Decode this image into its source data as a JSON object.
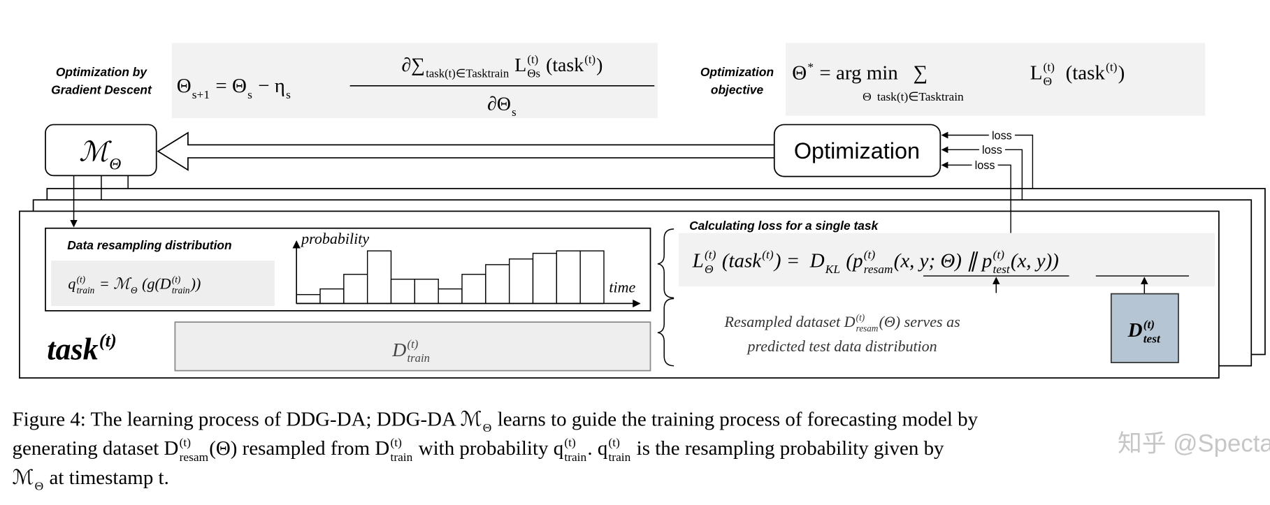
{
  "top": {
    "gd_label": [
      "Optimization by",
      "Gradient Descent"
    ],
    "gd_formula": {
      "lhs": [
        {
          "base": "Θ",
          "sub": "s+1"
        },
        " = ",
        {
          "base": "Θ",
          "sub": "s"
        },
        " − ",
        {
          "base": "η",
          "sub": "s"
        }
      ],
      "numerator": [
        "∂",
        {
          "base": "∑",
          "sub": "task(t)∈Tasktrain"
        },
        " ",
        {
          "base": "L",
          "sup": "(t)",
          "sub": "Θs"
        },
        " ",
        {
          "base": "(task",
          "sup": "(t)"
        },
        ")"
      ],
      "denominator": [
        "∂",
        {
          "base": "Θ",
          "sub": "s"
        }
      ]
    },
    "objective_label": [
      "Optimization",
      "objective"
    ],
    "objective_formula": [
      {
        "base": "Θ",
        "sup": "*"
      },
      " = ",
      {
        "base": "arg min",
        "under": "Θ"
      },
      "   ",
      {
        "base": "∑",
        "under": "task(t)∈Tasktrain"
      },
      "      ",
      {
        "base": "L",
        "sup": "(t)",
        "sub": "Θ"
      },
      "  ",
      {
        "base": "(task",
        "sup": "(t)"
      },
      ")"
    ]
  },
  "nodes": {
    "model": [
      {
        "base": "ℳ",
        "sub": "Θ"
      }
    ],
    "optimization": "Optimization",
    "loss_labels": [
      "loss",
      "loss",
      "loss"
    ]
  },
  "task": {
    "resampling_title": "Data resampling distribution",
    "q_formula": [
      {
        "base": "q",
        "sup": "(t)",
        "sub": "train"
      },
      " = ",
      {
        "base": "ℳ",
        "sub": "Θ"
      },
      " (g(",
      {
        "base": "D",
        "sup": "(t)",
        "sub": "train"
      },
      "))"
    ],
    "y_axis_label": "probability",
    "x_axis_label": "time",
    "task_label": [
      {
        "base": "task",
        "sup": "(t)"
      }
    ],
    "d_train": [
      {
        "base": "D",
        "sup": "(t)",
        "sub": "train"
      }
    ],
    "loss_title": "Calculating loss for a single task",
    "loss_formula": [
      {
        "base": "L",
        "sup": "(t)",
        "sub": "Θ"
      },
      " ",
      {
        "base": "(task",
        "sup": "(t)"
      },
      ") =  ",
      {
        "base": "D",
        "sub": "KL"
      },
      " (",
      {
        "base": "p",
        "sup": "(t)",
        "sub": "resam"
      },
      "(x, y; Θ) ∥ ",
      {
        "base": "p",
        "sup": "(t)",
        "sub": "test"
      },
      "(x, y))"
    ],
    "resampled_note": [
      [
        "Resampled dataset ",
        {
          "base": "D",
          "sup": "(t)",
          "sub": "resam"
        },
        "(Θ) serves as"
      ],
      [
        "predicted test data distribution"
      ]
    ],
    "d_test": [
      {
        "base": "D",
        "sup": "(t)",
        "sub": "test"
      }
    ]
  },
  "caption": [
    [
      "Figure 4: The learning process of DDG-DA; DDG-DA ",
      {
        "base": "ℳ",
        "sub": "Θ"
      },
      " learns to guide the training process of forecasting model by"
    ],
    [
      "generating dataset ",
      {
        "base": "D",
        "sup": "(t)",
        "sub": "resam"
      },
      "(Θ) resampled from ",
      {
        "base": "D",
        "sup": "(t)",
        "sub": "train"
      },
      " with probability ",
      {
        "base": "q",
        "sup": "(t)",
        "sub": "train"
      },
      ". ",
      {
        "base": "q",
        "sup": "(t)",
        "sub": "train"
      },
      " is the resampling probability given by"
    ],
    [
      {
        "base": "ℳ",
        "sub": "Θ"
      },
      " at timestamp t."
    ]
  ],
  "watermark": "知乎 @Spectator"
}
